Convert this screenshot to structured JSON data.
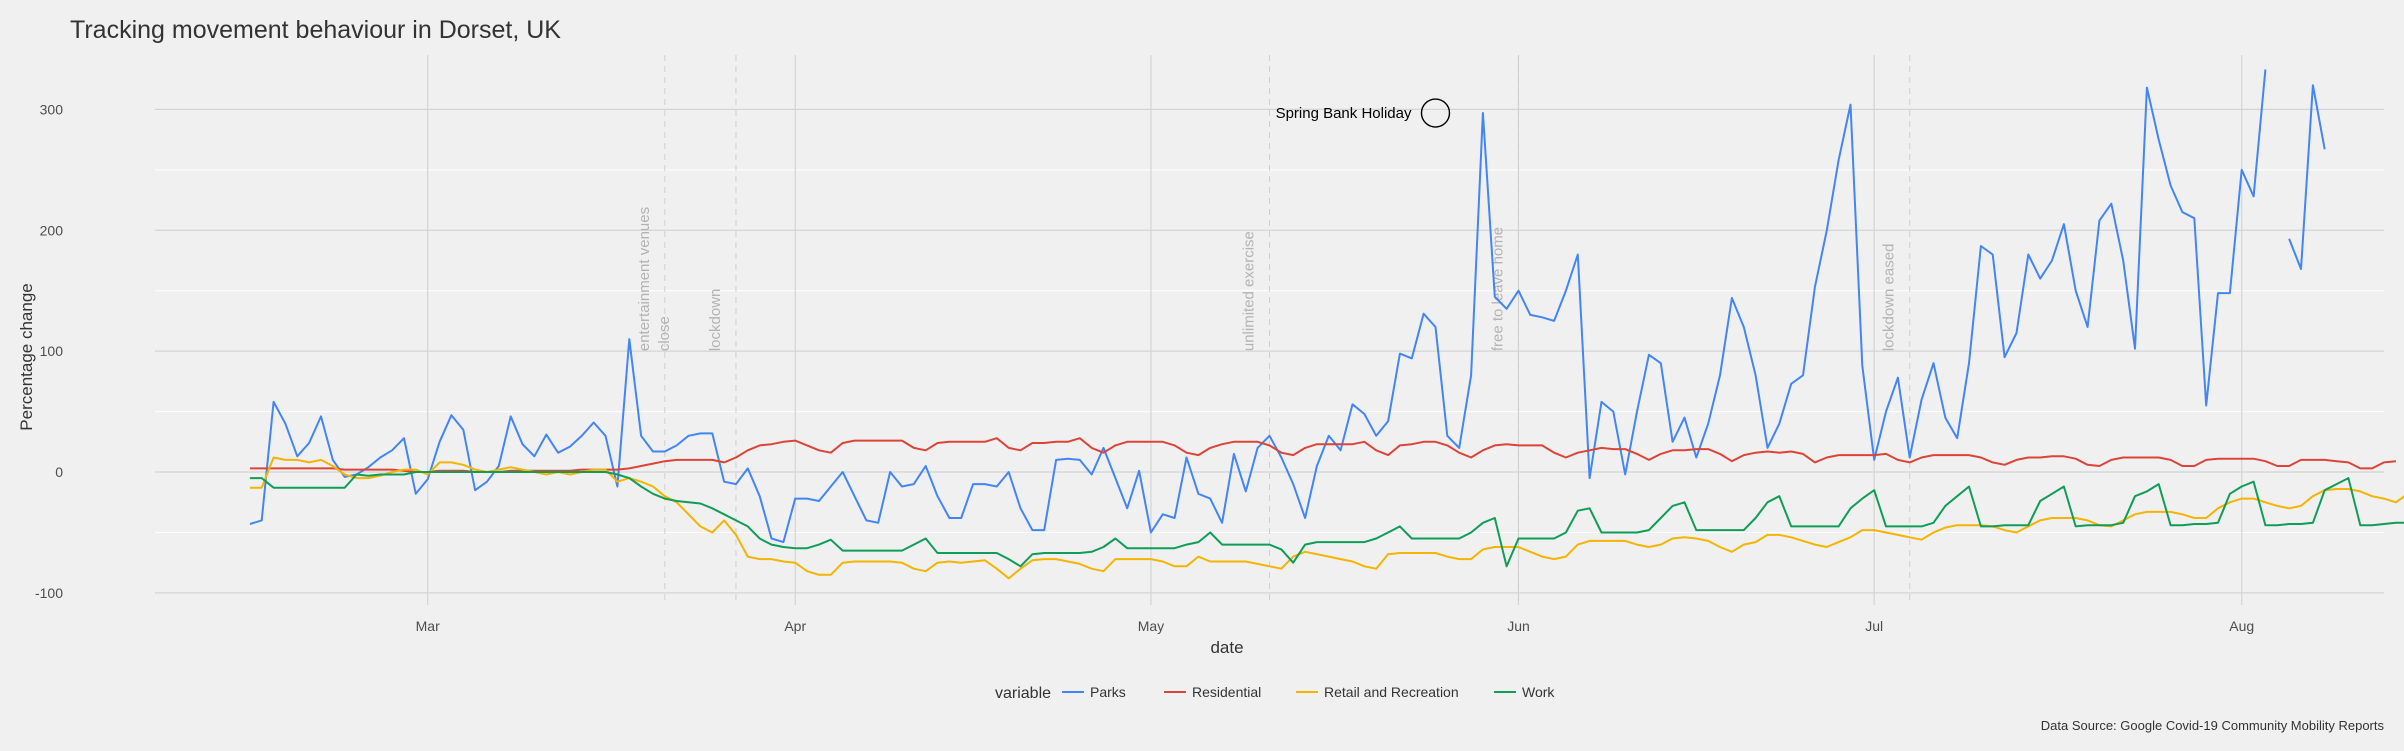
{
  "chart_data": {
    "type": "line",
    "title": "Tracking movement behaviour in Dorset, UK",
    "xlabel": "date",
    "ylabel": "Percentage change",
    "caption": "Data Source: Google Covid-19 Community Mobility Reports",
    "x_start": "2020-02-15",
    "x_end": "2020-08-05",
    "xlim": [
      "2020-02-07",
      "2020-08-13"
    ],
    "ylim": [
      -110,
      345
    ],
    "y_ticks": [
      -100,
      0,
      100,
      200,
      300
    ],
    "x_ticks": [
      {
        "date": "2020-03-01",
        "label": "Mar"
      },
      {
        "date": "2020-04-01",
        "label": "Apr"
      },
      {
        "date": "2020-05-01",
        "label": "May"
      },
      {
        "date": "2020-06-01",
        "label": "Jun"
      },
      {
        "date": "2020-07-01",
        "label": "Jul"
      },
      {
        "date": "2020-08-01",
        "label": "Aug"
      }
    ],
    "grid": true,
    "legend": {
      "title": "variable",
      "position": "bottom"
    },
    "events": [
      {
        "date": "2020-03-21",
        "label": "entertainment venues close"
      },
      {
        "date": "2020-03-27",
        "label": "lockdown"
      },
      {
        "date": "2020-05-11",
        "label": "unlimited exercise"
      },
      {
        "date": "2020-06-01",
        "label": "free to leave home"
      },
      {
        "date": "2020-07-04",
        "label": "lockdown eased"
      }
    ],
    "annotation": {
      "date": "2020-05-25",
      "value": 297,
      "label": "Spring Bank Holiday"
    },
    "series": [
      {
        "name": "Parks",
        "color": "#4285F4",
        "values": [
          -43,
          -40,
          58,
          40,
          13,
          24,
          46,
          10,
          -4,
          -2,
          4,
          12,
          18,
          28,
          -18,
          -6,
          25,
          47,
          35,
          -15,
          -8,
          5,
          46,
          23,
          13,
          31,
          16,
          21,
          30,
          41,
          30,
          -12,
          110,
          30,
          17,
          17,
          22,
          30,
          32,
          32,
          -8,
          -10,
          3,
          -20,
          -55,
          -58,
          -22,
          -22,
          -24,
          -12,
          0,
          -20,
          -40,
          -42,
          0,
          -12,
          -10,
          5,
          -20,
          -38,
          -38,
          -10,
          -10,
          -12,
          0,
          -30,
          -48,
          -48,
          10,
          11,
          10,
          -2,
          20,
          -5,
          -30,
          1,
          -50,
          -35,
          -38,
          12,
          -18,
          -22,
          -42,
          15,
          -16,
          20,
          30,
          12,
          -10,
          -38,
          5,
          30,
          18,
          56,
          48,
          30,
          42,
          98,
          94,
          131,
          120,
          30,
          20,
          80,
          297,
          145,
          135,
          150,
          130,
          128,
          125,
          150,
          180,
          -5,
          58,
          50,
          -2,
          50,
          97,
          90,
          25,
          45,
          12,
          40,
          80,
          144,
          120,
          80,
          20,
          40,
          73,
          80,
          153,
          200,
          258,
          304,
          88,
          10,
          50,
          78,
          12,
          60,
          90,
          45,
          28,
          90,
          187,
          180,
          95,
          115,
          180,
          160,
          175,
          205,
          150,
          120,
          208,
          222,
          175,
          102,
          318,
          275,
          237,
          215,
          210,
          55,
          148,
          148,
          250,
          228,
          333,
          null,
          193,
          168,
          320,
          267
        ]
      },
      {
        "name": "Residential",
        "color": "#DB4437",
        "values": [
          3,
          3,
          3,
          3,
          3,
          3,
          3,
          3,
          2,
          2,
          2,
          2,
          2,
          1,
          0,
          0,
          1,
          1,
          1,
          0,
          0,
          0,
          1,
          1,
          1,
          1,
          1,
          1,
          2,
          2,
          2,
          2,
          3,
          5,
          7,
          9,
          10,
          10,
          10,
          10,
          8,
          12,
          18,
          22,
          23,
          25,
          26,
          22,
          18,
          16,
          24,
          26,
          26,
          26,
          26,
          26,
          20,
          18,
          24,
          25,
          25,
          25,
          25,
          28,
          20,
          18,
          24,
          24,
          25,
          25,
          28,
          20,
          16,
          22,
          25,
          25,
          25,
          25,
          22,
          16,
          14,
          20,
          23,
          25,
          25,
          25,
          22,
          16,
          14,
          20,
          23,
          23,
          23,
          23,
          25,
          18,
          14,
          22,
          23,
          25,
          25,
          22,
          16,
          12,
          18,
          22,
          23,
          22,
          22,
          22,
          16,
          12,
          16,
          18,
          20,
          19,
          19,
          15,
          10,
          15,
          18,
          18,
          19,
          19,
          15,
          9,
          14,
          16,
          17,
          16,
          17,
          15,
          8,
          12,
          14,
          14,
          14,
          14,
          15,
          10,
          8,
          12,
          14,
          14,
          14,
          14,
          12,
          8,
          6,
          10,
          12,
          12,
          13,
          13,
          11,
          6,
          5,
          10,
          12,
          12,
          12,
          12,
          10,
          5,
          5,
          10,
          11,
          11,
          11,
          11,
          9,
          5,
          5,
          10,
          10,
          10,
          9,
          8,
          3,
          3,
          8,
          9
        ]
      },
      {
        "name": "Retail and Recreation",
        "color": "#F4B400",
        "values": [
          -13,
          -13,
          12,
          10,
          10,
          8,
          10,
          5,
          -2,
          -5,
          -5,
          -3,
          0,
          2,
          2,
          -2,
          8,
          8,
          6,
          2,
          0,
          2,
          4,
          2,
          0,
          -2,
          0,
          -2,
          0,
          2,
          2,
          -8,
          -5,
          -8,
          -12,
          -20,
          -25,
          -35,
          -45,
          -50,
          -40,
          -52,
          -70,
          -72,
          -72,
          -74,
          -75,
          -82,
          -85,
          -85,
          -75,
          -74,
          -74,
          -74,
          -74,
          -75,
          -80,
          -82,
          -75,
          -74,
          -75,
          -74,
          -73,
          -80,
          -88,
          -80,
          -73,
          -72,
          -72,
          -74,
          -76,
          -80,
          -82,
          -72,
          -72,
          -72,
          -72,
          -74,
          -78,
          -78,
          -70,
          -74,
          -74,
          -74,
          -74,
          -76,
          -78,
          -80,
          -70,
          -66,
          -68,
          -70,
          -72,
          -74,
          -78,
          -80,
          -68,
          -67,
          -67,
          -67,
          -67,
          -70,
          -72,
          -72,
          -64,
          -62,
          -62,
          -62,
          -66,
          -70,
          -72,
          -70,
          -60,
          -57,
          -57,
          -57,
          -57,
          -60,
          -62,
          -60,
          -55,
          -54,
          -55,
          -57,
          -62,
          -66,
          -60,
          -58,
          -52,
          -52,
          -54,
          -57,
          -60,
          -62,
          -58,
          -54,
          -48,
          -48,
          -50,
          -52,
          -54,
          -56,
          -50,
          -46,
          -44,
          -44,
          -44,
          -45,
          -48,
          -50,
          -45,
          -40,
          -38,
          -38,
          -38,
          -40,
          -44,
          -45,
          -40,
          -35,
          -33,
          -33,
          -33,
          -35,
          -38,
          -38,
          -30,
          -25,
          -22,
          -22,
          -25,
          -28,
          -30,
          -28,
          -20,
          -15,
          -14,
          -14,
          -16,
          -20,
          -22,
          -25,
          -18,
          -15,
          -10,
          -10,
          -12,
          -14,
          -18,
          -20,
          -12,
          -5,
          -3,
          -5,
          -8,
          -14,
          -16,
          -14,
          -5,
          2,
          1
        ]
      },
      {
        "name": "Work",
        "color": "#0F9D58",
        "values": [
          -5,
          -5,
          -13,
          -13,
          -13,
          -13,
          -13,
          -13,
          -13,
          -2,
          -3,
          -2,
          -2,
          -2,
          0,
          0,
          0,
          0,
          0,
          0,
          0,
          0,
          0,
          0,
          0,
          0,
          0,
          0,
          0,
          0,
          0,
          -2,
          -5,
          -12,
          -18,
          -22,
          -24,
          -25,
          -26,
          -30,
          -35,
          -40,
          -45,
          -55,
          -60,
          -62,
          -63,
          -63,
          -60,
          -56,
          -65,
          -65,
          -65,
          -65,
          -65,
          -65,
          -60,
          -55,
          -67,
          -67,
          -67,
          -67,
          -67,
          -67,
          -72,
          -78,
          -68,
          -67,
          -67,
          -67,
          -67,
          -66,
          -62,
          -55,
          -63,
          -63,
          -63,
          -63,
          -63,
          -60,
          -58,
          -50,
          -60,
          -60,
          -60,
          -60,
          -60,
          -64,
          -75,
          -60,
          -58,
          -58,
          -58,
          -58,
          -58,
          -55,
          -50,
          -45,
          -55,
          -55,
          -55,
          -55,
          -55,
          -50,
          -42,
          -38,
          -78,
          -55,
          -55,
          -55,
          -55,
          -50,
          -32,
          -30,
          -50,
          -50,
          -50,
          -50,
          -48,
          -38,
          -28,
          -25,
          -48,
          -48,
          -48,
          -48,
          -48,
          -38,
          -25,
          -20,
          -45,
          -45,
          -45,
          -45,
          -45,
          -30,
          -22,
          -15,
          -45,
          -45,
          -45,
          -45,
          -42,
          -28,
          -20,
          -12,
          -45,
          -45,
          -44,
          -44,
          -44,
          -24,
          -18,
          -12,
          -45,
          -44,
          -44,
          -44,
          -42,
          -20,
          -16,
          -10,
          -44,
          -44,
          -43,
          -43,
          -42,
          -18,
          -12,
          -8,
          -44,
          -44,
          -43,
          -43,
          -42,
          -15,
          -10,
          -5,
          -44,
          -44,
          -43,
          -42,
          -42,
          -20,
          -12,
          -8,
          -42,
          -42,
          -40,
          -40,
          -40,
          -14,
          -10,
          -8,
          -42,
          -42
        ]
      }
    ]
  }
}
